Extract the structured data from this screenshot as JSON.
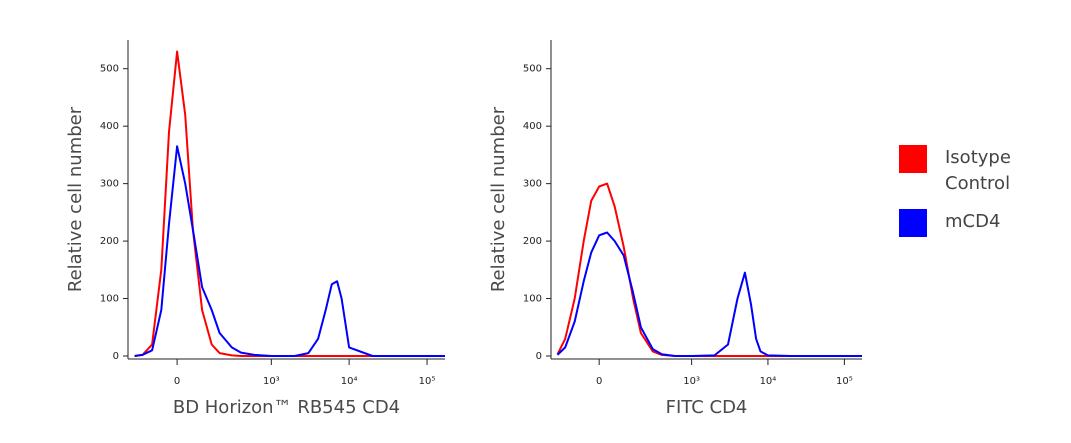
{
  "chart_data": [
    {
      "type": "line",
      "x_scale": "biexponential",
      "x_label": "BD Horizon™ RB545 CD4",
      "y_label": "Relative cell number",
      "x": [
        -200,
        -150,
        -100,
        -60,
        -30,
        0,
        30,
        60,
        100,
        150,
        200,
        300,
        400,
        600,
        1000,
        2000,
        3000,
        4000,
        5000,
        6000,
        7000,
        8000,
        10000,
        20000,
        170000
      ],
      "series": [
        {
          "name": "Isotype Control",
          "color": "#ff0000",
          "values": [
            0,
            2,
            20,
            150,
            390,
            530,
            420,
            220,
            80,
            20,
            5,
            1,
            0,
            0,
            0,
            0,
            0,
            0,
            0,
            0,
            0,
            0,
            0,
            0,
            0
          ]
        },
        {
          "name": "mCD4",
          "color": "#0000ff",
          "values": [
            0,
            2,
            10,
            80,
            230,
            365,
            300,
            220,
            120,
            80,
            40,
            15,
            6,
            2,
            0,
            0,
            5,
            30,
            80,
            125,
            130,
            100,
            15,
            0,
            0
          ]
        }
      ],
      "xlim": [
        -250,
        170000
      ],
      "xticks": [
        0,
        {
          "value": 1000,
          "label": "10³"
        },
        {
          "value": 10000,
          "label": "10⁴"
        },
        {
          "value": 100000,
          "label": "10⁵"
        }
      ],
      "ylim": [
        0,
        550
      ],
      "yticks": [
        0,
        100,
        200,
        300,
        400,
        500
      ]
    },
    {
      "type": "line",
      "x_scale": "biexponential",
      "x_label": "FITC CD4",
      "y_label": "Relative cell number",
      "x": [
        -200,
        -150,
        -100,
        -60,
        -30,
        0,
        30,
        60,
        100,
        150,
        200,
        300,
        400,
        600,
        1000,
        2000,
        3000,
        4000,
        5000,
        6000,
        7000,
        8000,
        10000,
        20000,
        170000
      ],
      "series": [
        {
          "name": "Isotype Control",
          "color": "#ff0000",
          "values": [
            3,
            30,
            100,
            200,
            270,
            295,
            300,
            260,
            190,
            100,
            40,
            8,
            2,
            0,
            0,
            0,
            0,
            0,
            0,
            0,
            0,
            0,
            0,
            0,
            0
          ]
        },
        {
          "name": "mCD4",
          "color": "#0000ff",
          "values": [
            2,
            15,
            60,
            130,
            180,
            210,
            215,
            200,
            175,
            110,
            50,
            12,
            3,
            0,
            0,
            1,
            20,
            100,
            145,
            90,
            30,
            8,
            1,
            0,
            0
          ]
        }
      ],
      "xlim": [
        -250,
        170000
      ],
      "xticks": [
        0,
        {
          "value": 1000,
          "label": "10³"
        },
        {
          "value": 10000,
          "label": "10⁴"
        },
        {
          "value": 100000,
          "label": "10⁵"
        }
      ],
      "ylim": [
        0,
        550
      ],
      "yticks": [
        0,
        100,
        200,
        300,
        400,
        500
      ]
    }
  ]
}
